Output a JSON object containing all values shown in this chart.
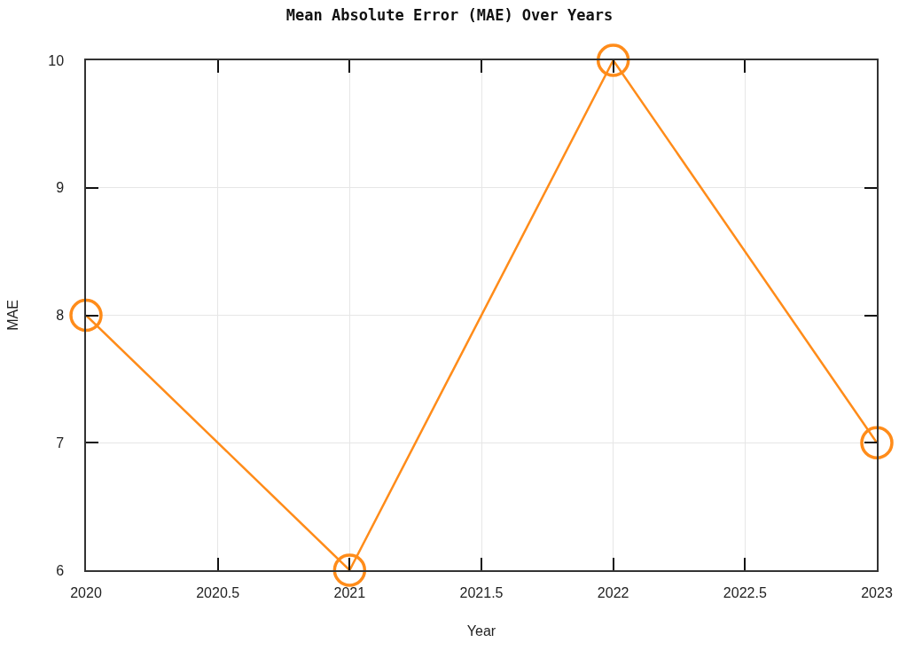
{
  "chart_data": {
    "type": "line",
    "title": "Mean Absolute Error (MAE) Over Years",
    "xlabel": "Year",
    "ylabel": "MAE",
    "x": [
      2020,
      2021,
      2022,
      2023
    ],
    "series": [
      {
        "color": "#ff8c1a",
        "values": [
          8,
          6,
          10,
          7
        ]
      }
    ],
    "xlim": [
      2020,
      2023
    ],
    "xticks": [
      2020,
      2020.5,
      2021,
      2021.5,
      2022,
      2022.5,
      2023
    ],
    "ylim": [
      6,
      10
    ],
    "yticks": [
      6,
      7,
      8,
      9,
      10
    ],
    "grid": true,
    "marker": "circle",
    "line_style": "solid"
  }
}
